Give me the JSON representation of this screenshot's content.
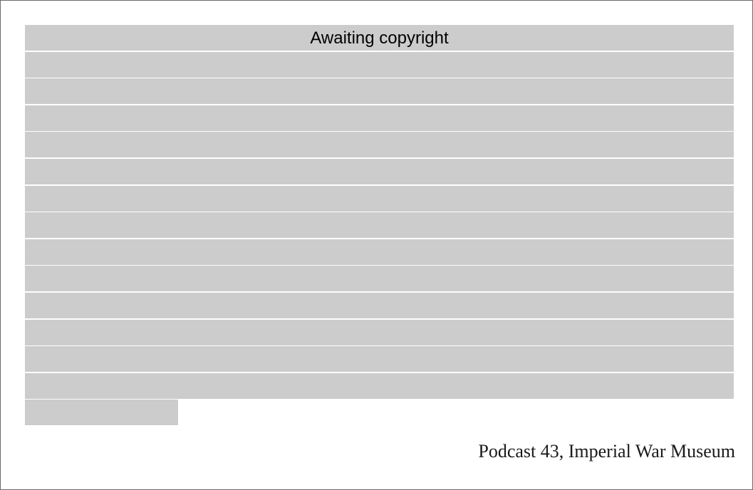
{
  "redaction": {
    "notice": "Awaiting copyright",
    "full_lines": 14,
    "has_short_last_line": true,
    "bar_color": "#cccccc"
  },
  "source": {
    "citation": "Podcast 43, Imperial War Museum"
  }
}
